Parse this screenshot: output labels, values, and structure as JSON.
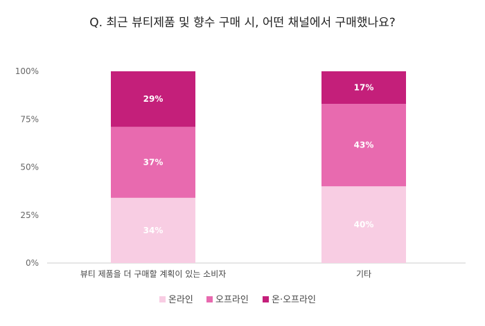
{
  "chart_data": {
    "type": "bar",
    "stacked": true,
    "title": "Q. 최근 뷰티제품 및 향수 구매 시, 어떤 채널에서 구매했나요?",
    "categories": [
      "뷰티 제품을 더 구매할 계획이 있는 소비자",
      "기타"
    ],
    "series": [
      {
        "name": "온라인",
        "values": [
          34,
          40
        ],
        "labels": [
          "34%",
          "40%"
        ],
        "color": "#f8cde3",
        "label_color": "#ffffff"
      },
      {
        "name": "오프라인",
        "values": [
          37,
          43
        ],
        "labels": [
          "37%",
          "43%"
        ],
        "color": "#e86aaf",
        "label_color": "#ffffff"
      },
      {
        "name": "온·오프라인",
        "values": [
          29,
          17
        ],
        "labels": [
          "29%",
          "17%"
        ],
        "color": "#c41f7a",
        "label_color": "#ffffff"
      }
    ],
    "yticks": [
      "0%",
      "25%",
      "50%",
      "75%",
      "100%"
    ],
    "ylim": [
      0,
      100
    ],
    "grid": false,
    "legend": "bottom-center"
  }
}
